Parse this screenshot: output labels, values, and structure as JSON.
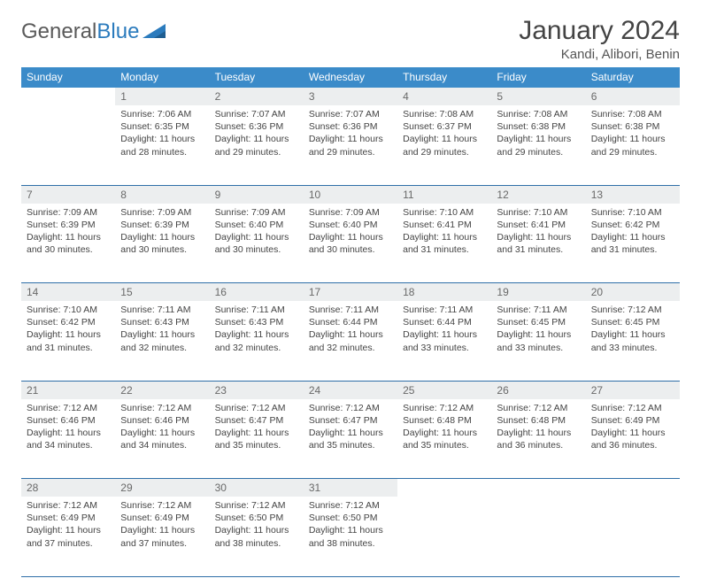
{
  "brand": {
    "part1": "General",
    "part2": "Blue"
  },
  "title": "January 2024",
  "location": "Kandi, Alibori, Benin",
  "colors": {
    "header_bg": "#3b8bc9",
    "header_text": "#ffffff",
    "daynum_bg": "#eceeef",
    "daynum_text": "#696969",
    "row_divider": "#2f6fa8",
    "body_text": "#444444",
    "brand_gray": "#5a5a5a",
    "brand_blue": "#2b7bbd"
  },
  "weekdays": [
    "Sunday",
    "Monday",
    "Tuesday",
    "Wednesday",
    "Thursday",
    "Friday",
    "Saturday"
  ],
  "weeks": [
    [
      null,
      {
        "n": "1",
        "sr": "7:06 AM",
        "ss": "6:35 PM",
        "dl": "11 hours and 28 minutes."
      },
      {
        "n": "2",
        "sr": "7:07 AM",
        "ss": "6:36 PM",
        "dl": "11 hours and 29 minutes."
      },
      {
        "n": "3",
        "sr": "7:07 AM",
        "ss": "6:36 PM",
        "dl": "11 hours and 29 minutes."
      },
      {
        "n": "4",
        "sr": "7:08 AM",
        "ss": "6:37 PM",
        "dl": "11 hours and 29 minutes."
      },
      {
        "n": "5",
        "sr": "7:08 AM",
        "ss": "6:38 PM",
        "dl": "11 hours and 29 minutes."
      },
      {
        "n": "6",
        "sr": "7:08 AM",
        "ss": "6:38 PM",
        "dl": "11 hours and 29 minutes."
      }
    ],
    [
      {
        "n": "7",
        "sr": "7:09 AM",
        "ss": "6:39 PM",
        "dl": "11 hours and 30 minutes."
      },
      {
        "n": "8",
        "sr": "7:09 AM",
        "ss": "6:39 PM",
        "dl": "11 hours and 30 minutes."
      },
      {
        "n": "9",
        "sr": "7:09 AM",
        "ss": "6:40 PM",
        "dl": "11 hours and 30 minutes."
      },
      {
        "n": "10",
        "sr": "7:09 AM",
        "ss": "6:40 PM",
        "dl": "11 hours and 30 minutes."
      },
      {
        "n": "11",
        "sr": "7:10 AM",
        "ss": "6:41 PM",
        "dl": "11 hours and 31 minutes."
      },
      {
        "n": "12",
        "sr": "7:10 AM",
        "ss": "6:41 PM",
        "dl": "11 hours and 31 minutes."
      },
      {
        "n": "13",
        "sr": "7:10 AM",
        "ss": "6:42 PM",
        "dl": "11 hours and 31 minutes."
      }
    ],
    [
      {
        "n": "14",
        "sr": "7:10 AM",
        "ss": "6:42 PM",
        "dl": "11 hours and 31 minutes."
      },
      {
        "n": "15",
        "sr": "7:11 AM",
        "ss": "6:43 PM",
        "dl": "11 hours and 32 minutes."
      },
      {
        "n": "16",
        "sr": "7:11 AM",
        "ss": "6:43 PM",
        "dl": "11 hours and 32 minutes."
      },
      {
        "n": "17",
        "sr": "7:11 AM",
        "ss": "6:44 PM",
        "dl": "11 hours and 32 minutes."
      },
      {
        "n": "18",
        "sr": "7:11 AM",
        "ss": "6:44 PM",
        "dl": "11 hours and 33 minutes."
      },
      {
        "n": "19",
        "sr": "7:11 AM",
        "ss": "6:45 PM",
        "dl": "11 hours and 33 minutes."
      },
      {
        "n": "20",
        "sr": "7:12 AM",
        "ss": "6:45 PM",
        "dl": "11 hours and 33 minutes."
      }
    ],
    [
      {
        "n": "21",
        "sr": "7:12 AM",
        "ss": "6:46 PM",
        "dl": "11 hours and 34 minutes."
      },
      {
        "n": "22",
        "sr": "7:12 AM",
        "ss": "6:46 PM",
        "dl": "11 hours and 34 minutes."
      },
      {
        "n": "23",
        "sr": "7:12 AM",
        "ss": "6:47 PM",
        "dl": "11 hours and 35 minutes."
      },
      {
        "n": "24",
        "sr": "7:12 AM",
        "ss": "6:47 PM",
        "dl": "11 hours and 35 minutes."
      },
      {
        "n": "25",
        "sr": "7:12 AM",
        "ss": "6:48 PM",
        "dl": "11 hours and 35 minutes."
      },
      {
        "n": "26",
        "sr": "7:12 AM",
        "ss": "6:48 PM",
        "dl": "11 hours and 36 minutes."
      },
      {
        "n": "27",
        "sr": "7:12 AM",
        "ss": "6:49 PM",
        "dl": "11 hours and 36 minutes."
      }
    ],
    [
      {
        "n": "28",
        "sr": "7:12 AM",
        "ss": "6:49 PM",
        "dl": "11 hours and 37 minutes."
      },
      {
        "n": "29",
        "sr": "7:12 AM",
        "ss": "6:49 PM",
        "dl": "11 hours and 37 minutes."
      },
      {
        "n": "30",
        "sr": "7:12 AM",
        "ss": "6:50 PM",
        "dl": "11 hours and 38 minutes."
      },
      {
        "n": "31",
        "sr": "7:12 AM",
        "ss": "6:50 PM",
        "dl": "11 hours and 38 minutes."
      },
      null,
      null,
      null
    ]
  ],
  "labels": {
    "sunrise": "Sunrise:",
    "sunset": "Sunset:",
    "daylight": "Daylight:"
  }
}
